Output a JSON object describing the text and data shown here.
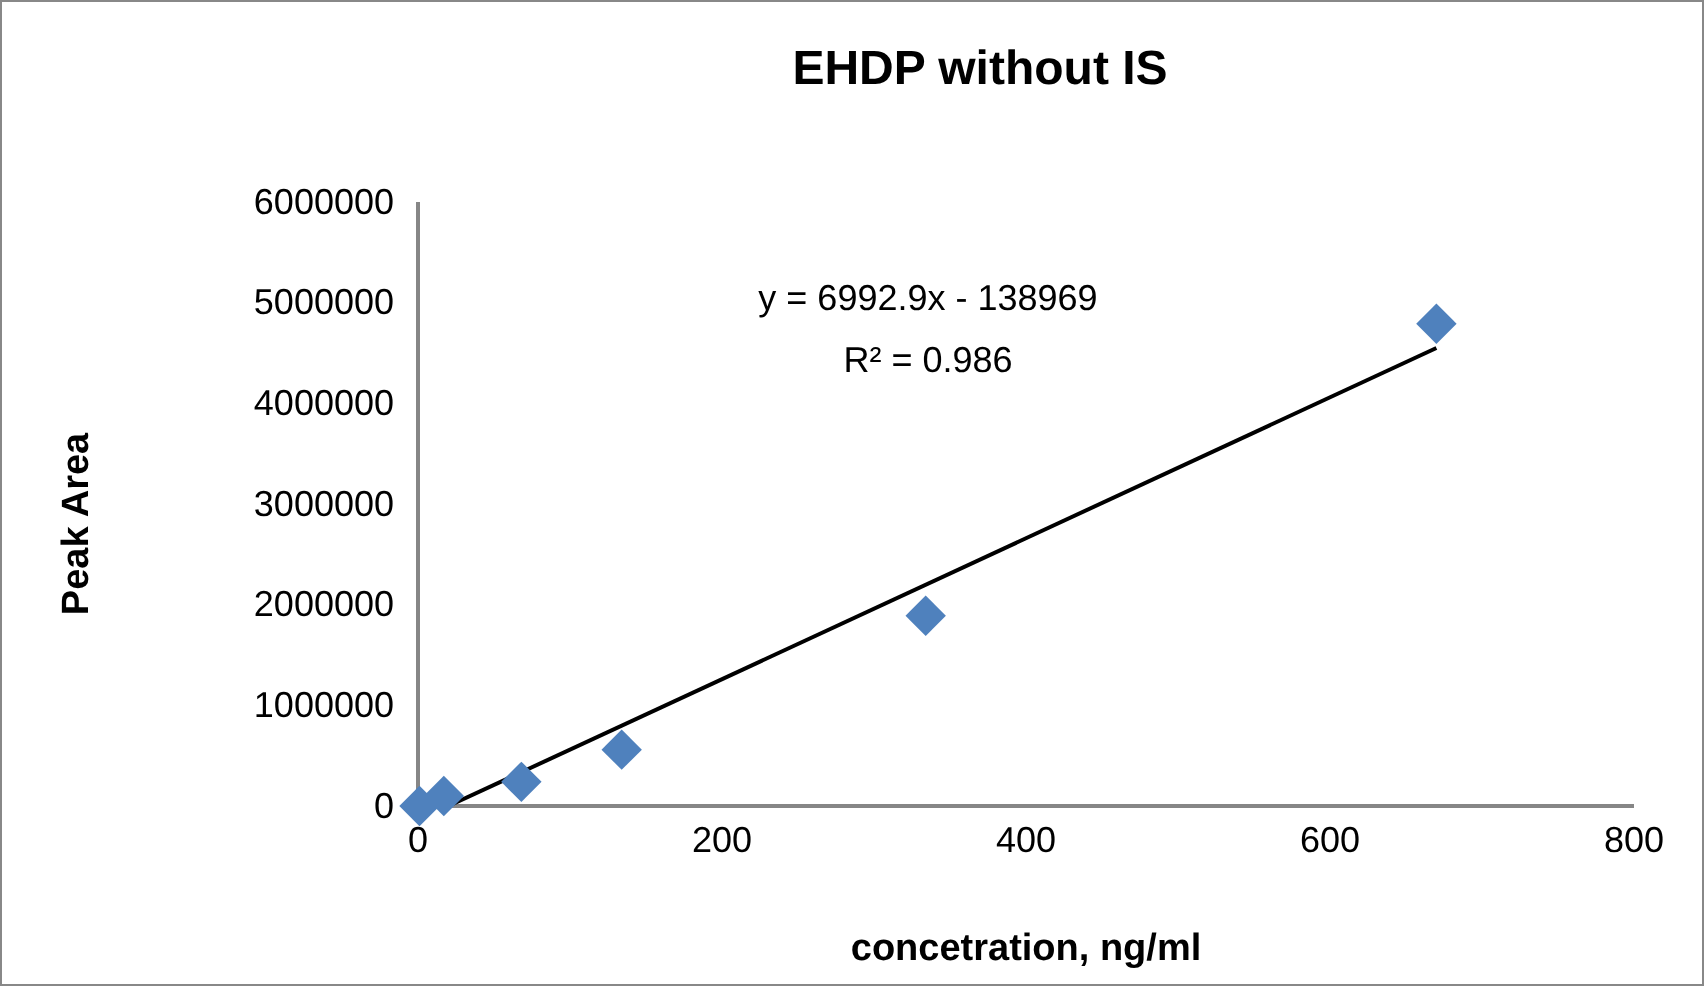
{
  "chart_data": {
    "type": "scatter",
    "title": "EHDP without IS",
    "xlabel": "concetration, ng/ml",
    "ylabel": "Peak Area",
    "xlim": [
      0,
      800
    ],
    "xticks": [
      0,
      200,
      400,
      600,
      800
    ],
    "ylim": [
      0,
      6000000
    ],
    "yticks": [
      0,
      1000000,
      2000000,
      3000000,
      4000000,
      5000000,
      6000000
    ],
    "grid": false,
    "marker": "diamond",
    "series": [
      {
        "color": "#4f81bd",
        "x": [
          1,
          17,
          68,
          134,
          334,
          670
        ],
        "values": [
          0,
          100000,
          240000,
          560000,
          1890000,
          4790000
        ]
      },
      {
        "type": "line",
        "marker": "none",
        "color": "#000000",
        "x": [
          20,
          670
        ],
        "values": [
          0,
          4550000
        ]
      }
    ],
    "annotations": [
      "y = 6992.9x - 138969",
      "R² = 0.986"
    ]
  }
}
